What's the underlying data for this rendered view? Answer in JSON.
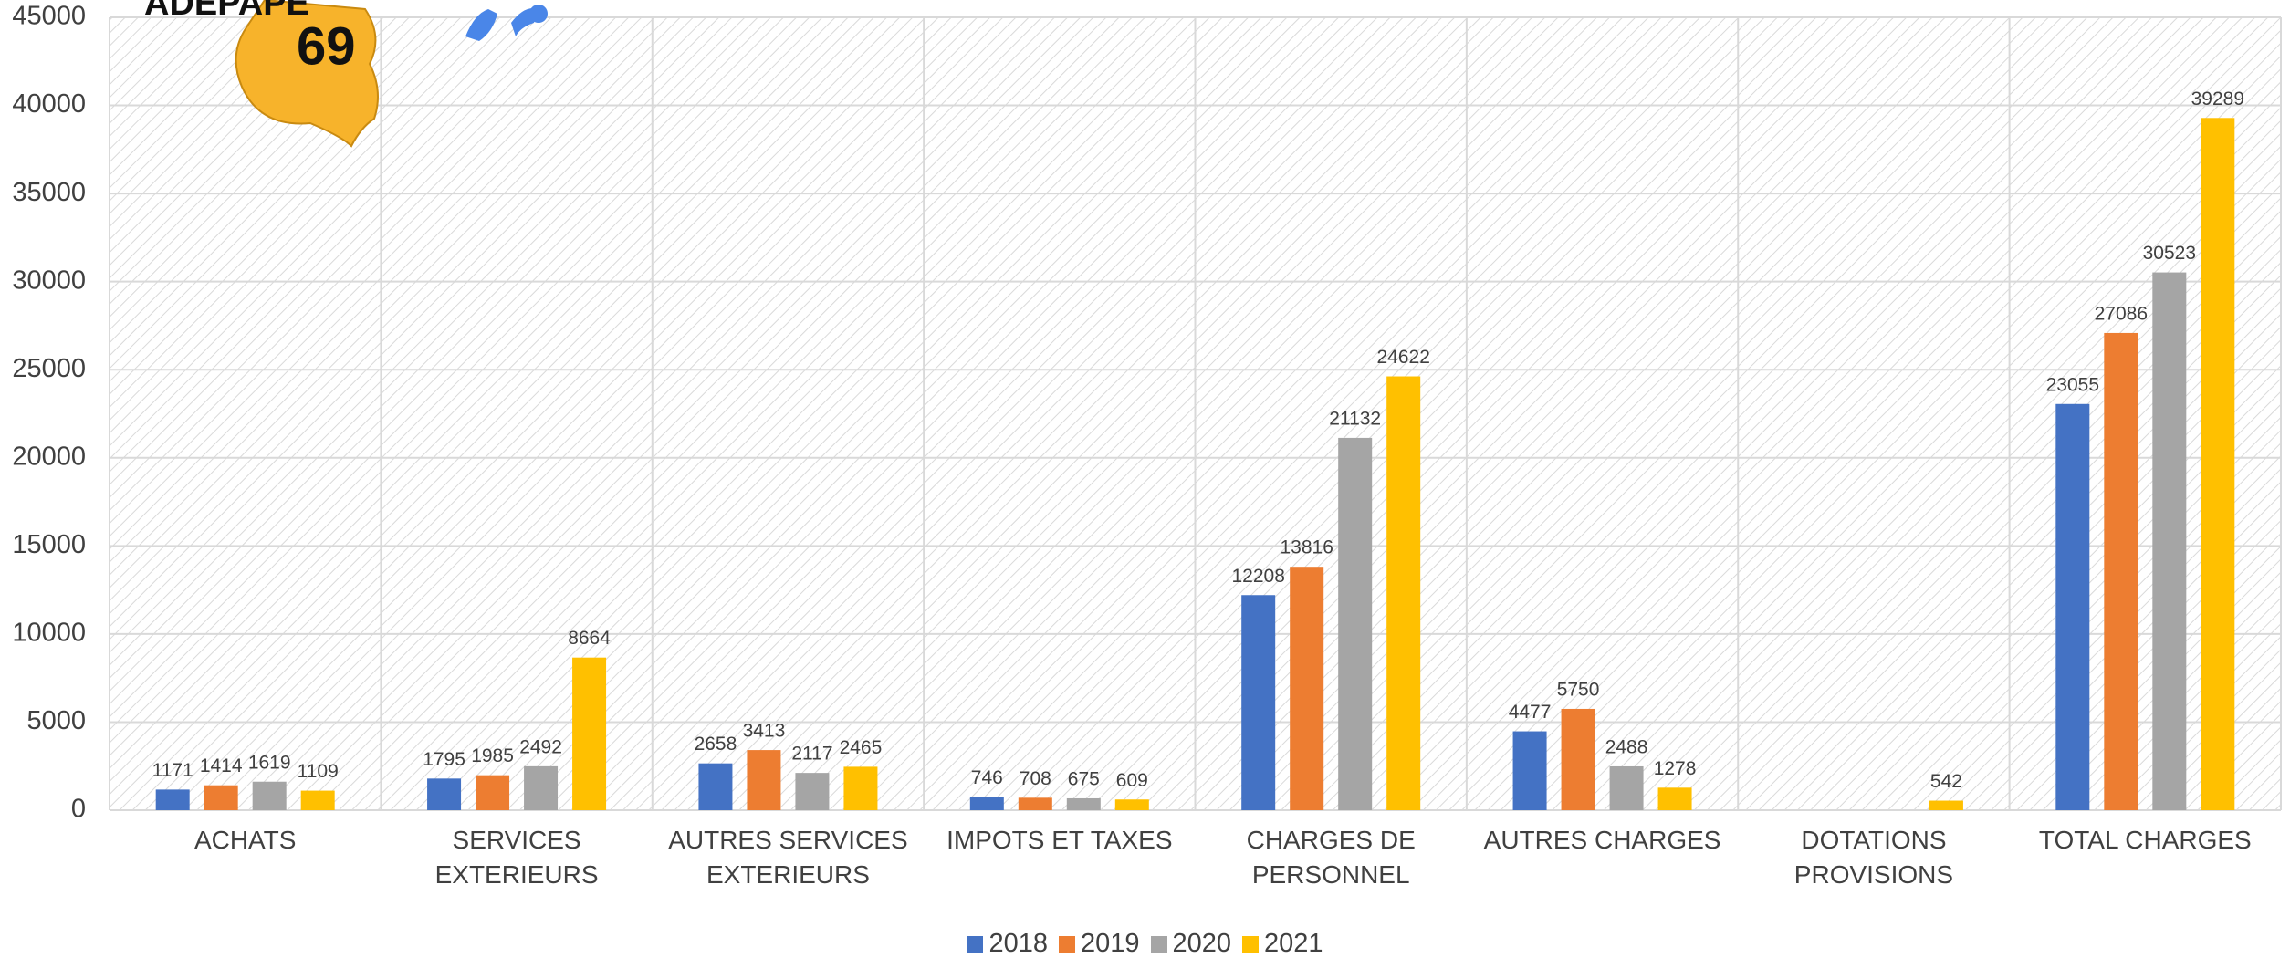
{
  "chart_data": {
    "type": "bar",
    "logo_text": [
      "ADEPAPE",
      "69"
    ],
    "categories": [
      "ACHATS",
      "SERVICES EXTERIEURS",
      "AUTRES SERVICES EXTERIEURS",
      "IMPOTS ET TAXES",
      "CHARGES DE PERSONNEL",
      "AUTRES CHARGES",
      "DOTATIONS PROVISIONS",
      "TOTAL CHARGES"
    ],
    "series": [
      {
        "name": "2018",
        "color": "#4472c4",
        "values": [
          1171,
          1795,
          2658,
          746,
          12208,
          4477,
          null,
          23055
        ]
      },
      {
        "name": "2019",
        "color": "#ed7d31",
        "values": [
          1414,
          1985,
          3413,
          708,
          13816,
          5750,
          null,
          27086
        ]
      },
      {
        "name": "2020",
        "color": "#a5a5a5",
        "values": [
          1619,
          2492,
          2117,
          675,
          21132,
          2488,
          null,
          30523
        ]
      },
      {
        "name": "2021",
        "color": "#ffc000",
        "values": [
          1109,
          8664,
          2465,
          609,
          24622,
          1278,
          542,
          39289
        ]
      }
    ],
    "ylim": [
      0,
      45000
    ],
    "yticks": [
      0,
      5000,
      10000,
      15000,
      20000,
      25000,
      30000,
      35000,
      40000,
      45000
    ],
    "grid": true,
    "legend": "bottom"
  }
}
